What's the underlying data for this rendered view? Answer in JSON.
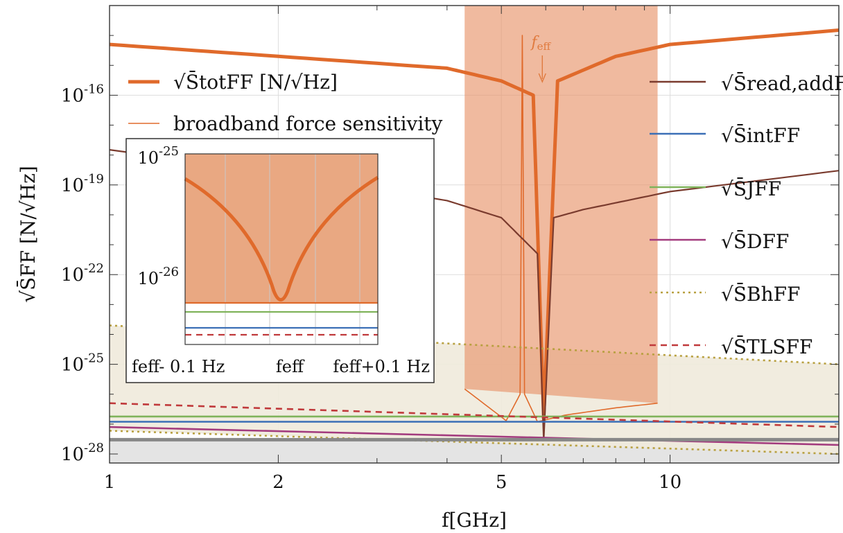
{
  "chart_data": {
    "type": "line",
    "xscale": "log",
    "yscale": "log",
    "xlim": [
      1,
      20
    ],
    "ylim": [
      5e-29,
      1e-13
    ],
    "xlabel": "f[GHz]",
    "ylabel": "√S̄FF [N/√Hz]",
    "xticks": [
      {
        "value": 1,
        "label": "1"
      },
      {
        "value": 2,
        "label": "2"
      },
      {
        "value": 5,
        "label": "5"
      },
      {
        "value": 10,
        "label": "10"
      }
    ],
    "yticks": [
      {
        "value": 1e-16,
        "label": "10-16"
      },
      {
        "value": 1e-19,
        "label": "10-19"
      },
      {
        "value": 1e-22,
        "label": "10-22"
      },
      {
        "value": 1e-25,
        "label": "10-25"
      },
      {
        "value": 1e-28,
        "label": "10-28"
      }
    ],
    "grid": true,
    "legend_left": [
      {
        "label": "√S̄totFF [N/√Hz]",
        "color": "#e06a2b"
      },
      {
        "label": "broadband force sensitivity",
        "color": "#e06a2b"
      }
    ],
    "legend_right": [
      {
        "label": "√S̄read,addFF",
        "color": "#7a3b2e",
        "style": "solid"
      },
      {
        "label": "√S̄intFF",
        "color": "#3b6fb6",
        "style": "solid"
      },
      {
        "label": "√S̄JFF",
        "color": "#7fb35a",
        "style": "solid"
      },
      {
        "label": "√S̄DFF",
        "color": "#a33b7e",
        "style": "solid"
      },
      {
        "label": "√S̄BhFF",
        "color": "#b8a040",
        "style": "dotted"
      },
      {
        "label": "√S̄TLSFF",
        "color": "#c0393b",
        "style": "dashed"
      }
    ],
    "series": [
      {
        "id": "tot",
        "color": "#e06a2b",
        "points": [
          [
            1,
            5e-15
          ],
          [
            2,
            2e-15
          ],
          [
            4,
            8e-16
          ],
          [
            5,
            3e-16
          ],
          [
            5.7,
            1e-16
          ],
          [
            5.95,
            1.5e-27
          ],
          [
            6.3,
            3e-16
          ],
          [
            8,
            2e-15
          ],
          [
            10,
            5e-15
          ],
          [
            20,
            1.5e-14
          ]
        ]
      },
      {
        "id": "broadband",
        "color": "#e06a2b",
        "points": [
          [
            4.3,
            1.5e-26
          ],
          [
            5.1,
            1.3e-27
          ],
          [
            5.4,
            1e-26
          ],
          [
            5.45,
            1e-14
          ],
          [
            5.5,
            1e-26
          ],
          [
            5.8,
            1.2e-27
          ],
          [
            6.5,
            2e-27
          ],
          [
            8,
            3.5e-27
          ],
          [
            9.5,
            5e-27
          ]
        ]
      },
      {
        "id": "read_add",
        "color": "#7a3b2e",
        "points": [
          [
            1,
            1.5e-18
          ],
          [
            2,
            2.5e-19
          ],
          [
            4,
            3e-20
          ],
          [
            5,
            8e-21
          ],
          [
            5.8,
            5e-22
          ],
          [
            5.95,
            3e-28
          ],
          [
            6.2,
            8e-21
          ],
          [
            7,
            1.5e-20
          ],
          [
            10,
            6e-20
          ],
          [
            20,
            3e-19
          ]
        ]
      },
      {
        "id": "int",
        "color": "#3b6fb6",
        "points": [
          [
            1,
            1.2e-27
          ],
          [
            20,
            1.2e-27
          ]
        ]
      },
      {
        "id": "J",
        "color": "#7fb35a",
        "points": [
          [
            1,
            1.8e-27
          ],
          [
            20,
            1.8e-27
          ]
        ]
      },
      {
        "id": "D",
        "color": "#a33b7e",
        "points": [
          [
            1,
            8e-28
          ],
          [
            20,
            2e-28
          ]
        ]
      },
      {
        "id": "Bh_upper",
        "color": "#b8a040",
        "points": [
          [
            1,
            2e-24
          ],
          [
            20,
            1e-25
          ]
        ]
      },
      {
        "id": "Bh_lower",
        "color": "#b8a040",
        "points": [
          [
            1,
            6e-28
          ],
          [
            20,
            1e-28
          ]
        ]
      },
      {
        "id": "TLS",
        "color": "#c0393b",
        "points": [
          [
            1,
            5e-27
          ],
          [
            20,
            8e-28
          ]
        ]
      },
      {
        "id": "floor",
        "color": "#888888",
        "points": [
          [
            1,
            3e-28
          ],
          [
            20,
            3e-28
          ]
        ]
      }
    ],
    "band": {
      "x": [
        4.3,
        9.5
      ],
      "color": "#e8956c",
      "ymin": 5e-27,
      "ymax": 1e-13
    },
    "annotation": {
      "text": "feff",
      "x": 5.95
    },
    "inset": {
      "ylim_labels": [
        "10-25",
        "10-26"
      ],
      "xtick_labels": [
        "feff- 0.1 Hz",
        "feff",
        "feff+0.1 Hz"
      ]
    }
  }
}
